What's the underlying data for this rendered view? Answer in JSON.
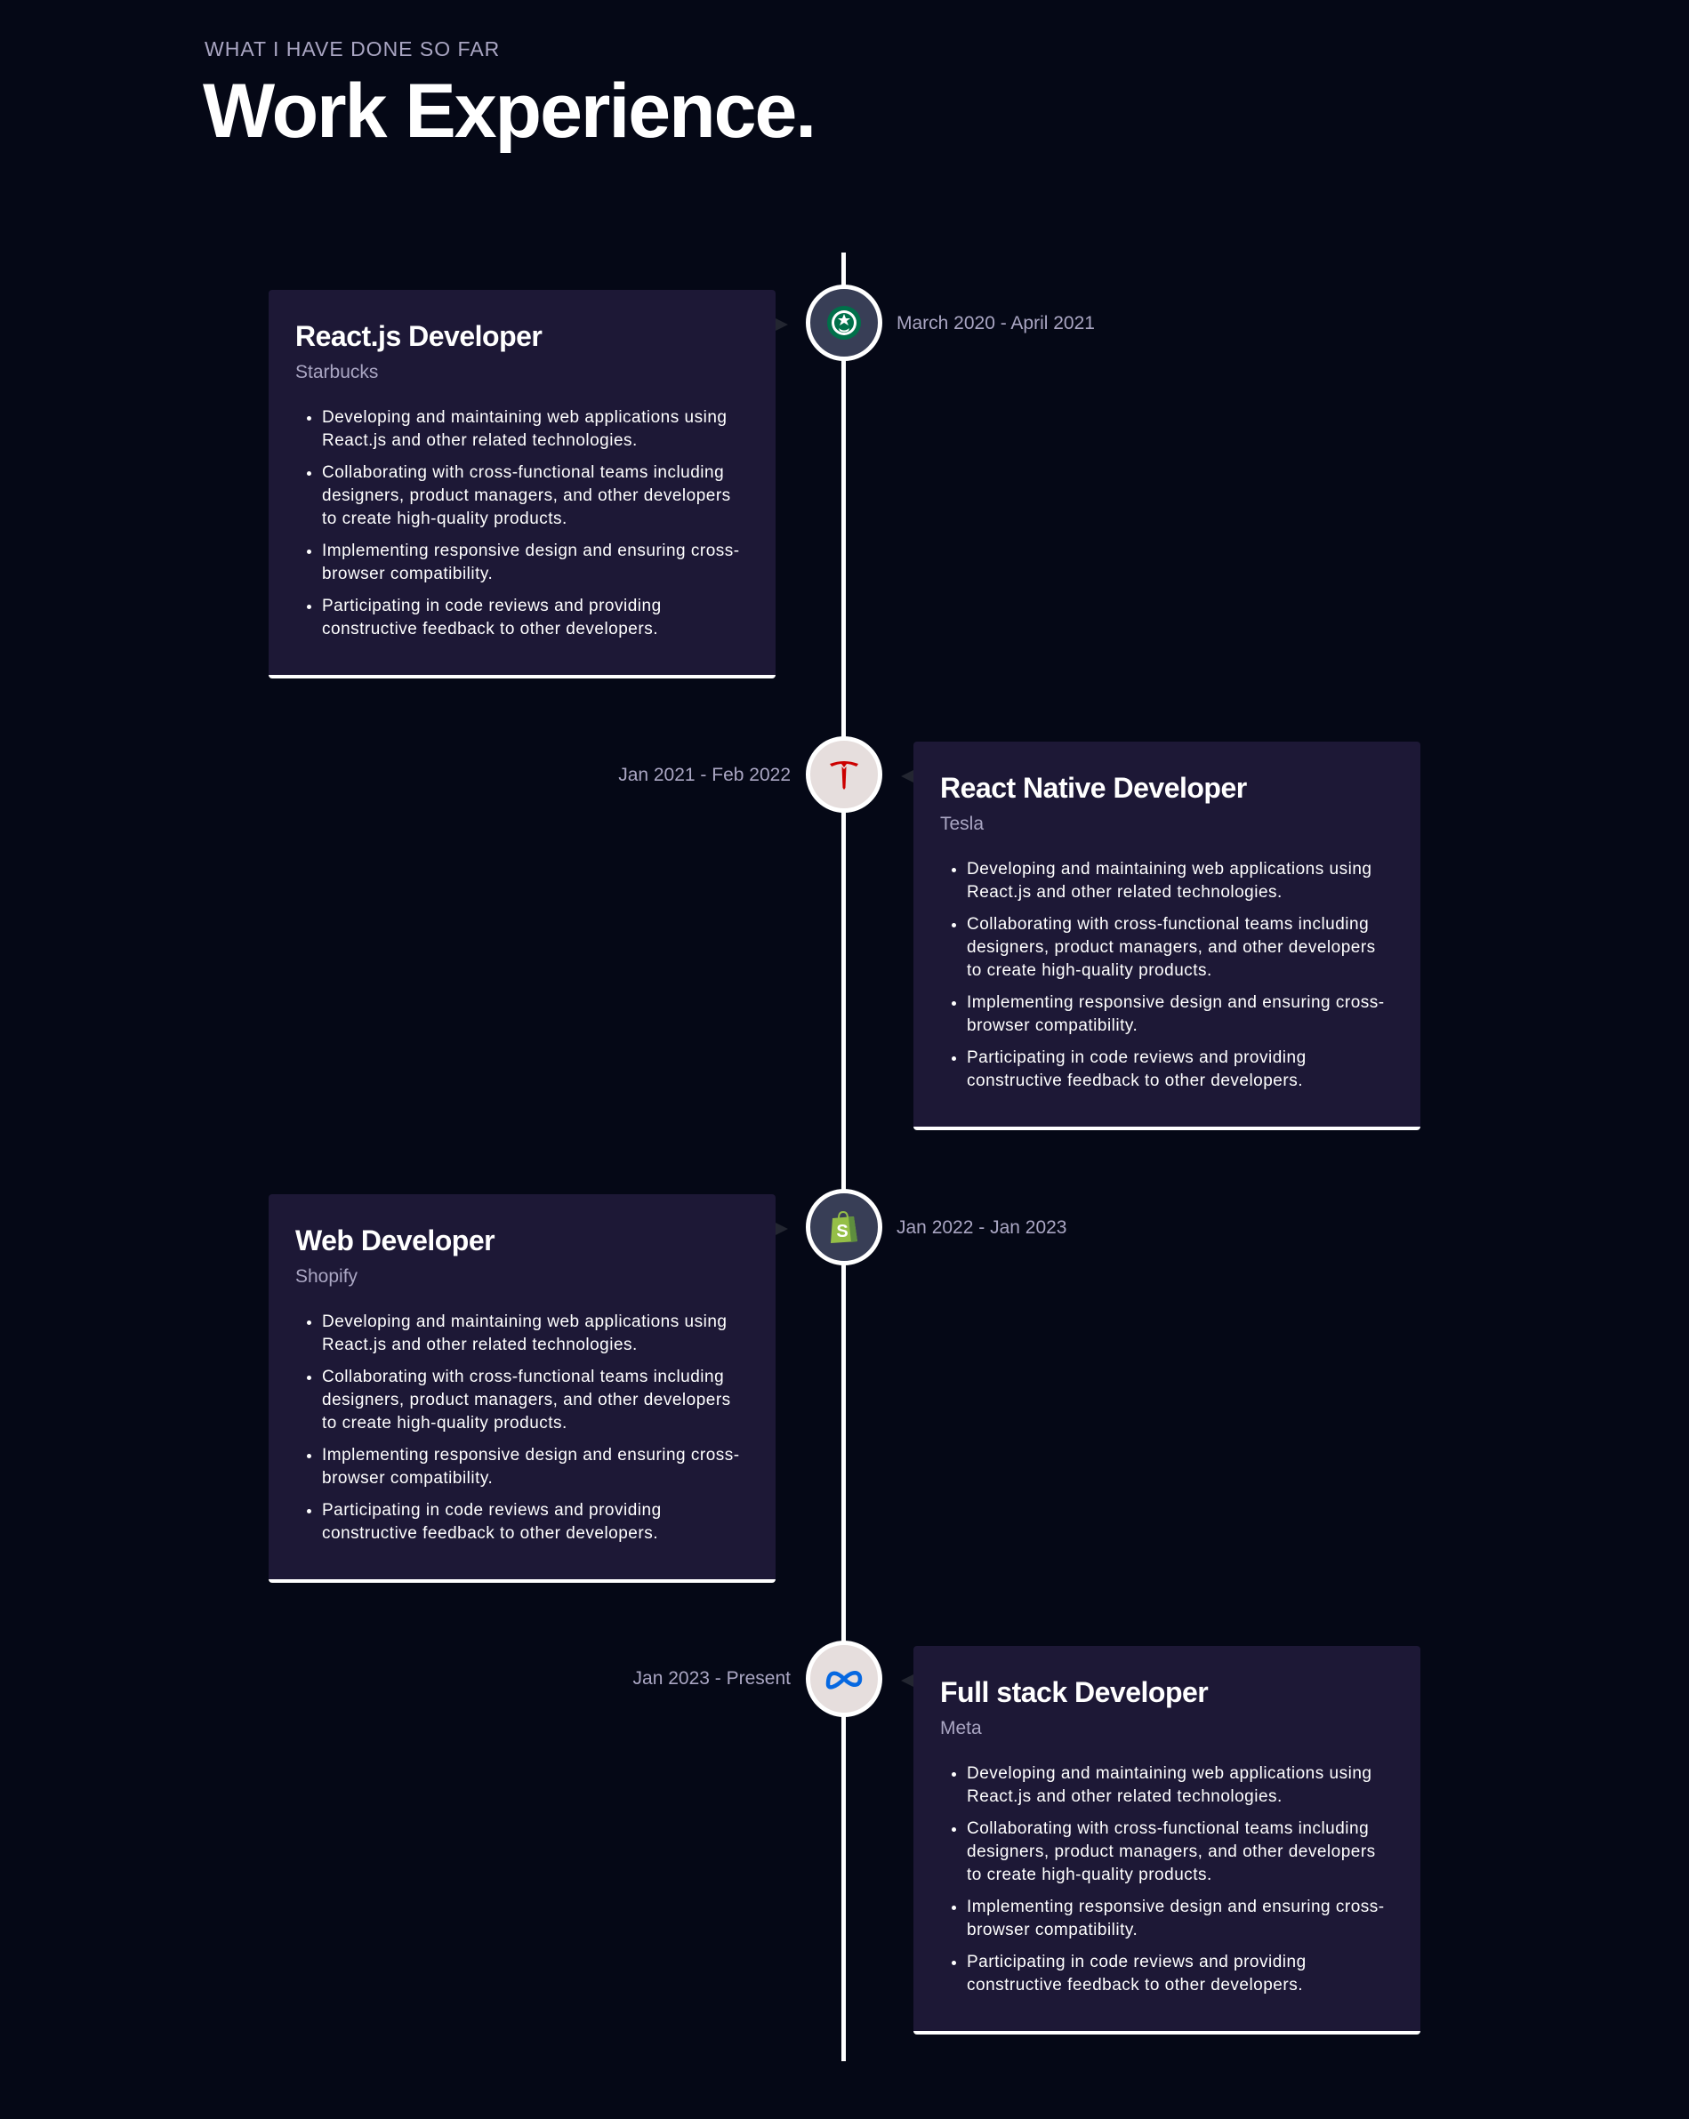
{
  "header": {
    "eyebrow": "What I have done so far",
    "title": "Work Experience."
  },
  "colors": {
    "background": "#050816",
    "card": "#1d1836",
    "secondary_text": "#aaa6c3"
  },
  "experiences": [
    {
      "role": "React.js Developer",
      "company": "Starbucks",
      "date": "March 2020 - April 2021",
      "icon": "starbucks-icon",
      "icon_bg": "#383E56",
      "points": [
        "Developing and maintaining web applications using React.js and other related technologies.",
        "Collaborating with cross-functional teams including designers, product managers, and other developers to create high-quality products.",
        "Implementing responsive design and ensuring cross-browser compatibility.",
        "Participating in code reviews and providing constructive feedback to other developers."
      ]
    },
    {
      "role": "React Native Developer",
      "company": "Tesla",
      "date": "Jan 2021 - Feb 2022",
      "icon": "tesla-icon",
      "icon_bg": "#E6DEDD",
      "points": [
        "Developing and maintaining web applications using React.js and other related technologies.",
        "Collaborating with cross-functional teams including designers, product managers, and other developers to create high-quality products.",
        "Implementing responsive design and ensuring cross-browser compatibility.",
        "Participating in code reviews and providing constructive feedback to other developers."
      ]
    },
    {
      "role": "Web Developer",
      "company": "Shopify",
      "date": "Jan 2022 - Jan 2023",
      "icon": "shopify-icon",
      "icon_bg": "#383E56",
      "points": [
        "Developing and maintaining web applications using React.js and other related technologies.",
        "Collaborating with cross-functional teams including designers, product managers, and other developers to create high-quality products.",
        "Implementing responsive design and ensuring cross-browser compatibility.",
        "Participating in code reviews and providing constructive feedback to other developers."
      ]
    },
    {
      "role": "Full stack Developer",
      "company": "Meta",
      "date": "Jan 2023 - Present",
      "icon": "meta-icon",
      "icon_bg": "#E6DEDD",
      "points": [
        "Developing and maintaining web applications using React.js and other related technologies.",
        "Collaborating with cross-functional teams including designers, product managers, and other developers to create high-quality products.",
        "Implementing responsive design and ensuring cross-browser compatibility.",
        "Participating in code reviews and providing constructive feedback to other developers."
      ]
    }
  ]
}
